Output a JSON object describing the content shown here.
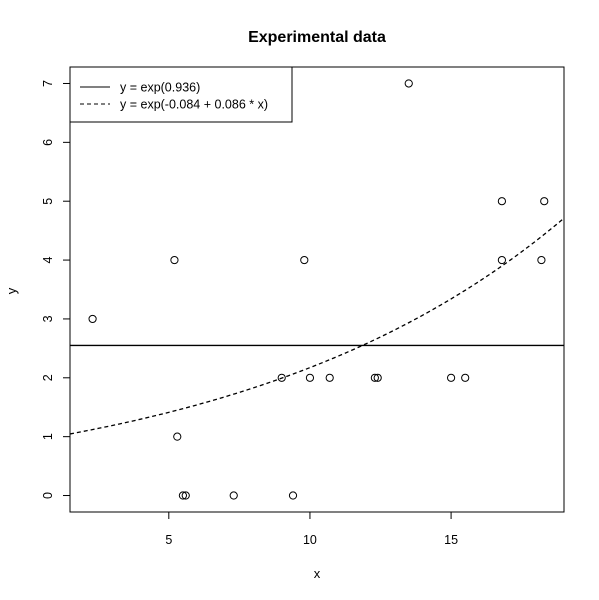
{
  "chart_data": {
    "type": "scatter",
    "title": "Experimental data",
    "xlabel": "x",
    "ylabel": "y",
    "xlim": [
      1.5,
      19.0
    ],
    "ylim": [
      -0.28,
      7.28
    ],
    "xticks": [
      5,
      10,
      15
    ],
    "yticks": [
      0,
      1,
      2,
      3,
      4,
      5,
      6,
      7
    ],
    "grid": false,
    "legend_position": "top-left",
    "points": [
      {
        "x": 2.3,
        "y": 3
      },
      {
        "x": 5.2,
        "y": 4
      },
      {
        "x": 5.3,
        "y": 1
      },
      {
        "x": 5.5,
        "y": 0
      },
      {
        "x": 5.6,
        "y": 0
      },
      {
        "x": 7.3,
        "y": 0
      },
      {
        "x": 9.0,
        "y": 2
      },
      {
        "x": 9.4,
        "y": 0
      },
      {
        "x": 9.8,
        "y": 4
      },
      {
        "x": 10.0,
        "y": 2
      },
      {
        "x": 10.7,
        "y": 2
      },
      {
        "x": 12.3,
        "y": 2
      },
      {
        "x": 12.4,
        "y": 2
      },
      {
        "x": 13.5,
        "y": 7
      },
      {
        "x": 15.0,
        "y": 2
      },
      {
        "x": 15.5,
        "y": 2
      },
      {
        "x": 16.8,
        "y": 5
      },
      {
        "x": 16.8,
        "y": 4
      },
      {
        "x": 18.2,
        "y": 4
      },
      {
        "x": 18.3,
        "y": 5
      }
    ],
    "series": [
      {
        "name": "y = exp(0.936)",
        "style": "solid",
        "intercept": 0.936,
        "slope": 0
      },
      {
        "name": "y = exp(-0.084 + 0.086 * x)",
        "style": "dashed",
        "intercept": -0.084,
        "slope": 0.086
      }
    ]
  }
}
